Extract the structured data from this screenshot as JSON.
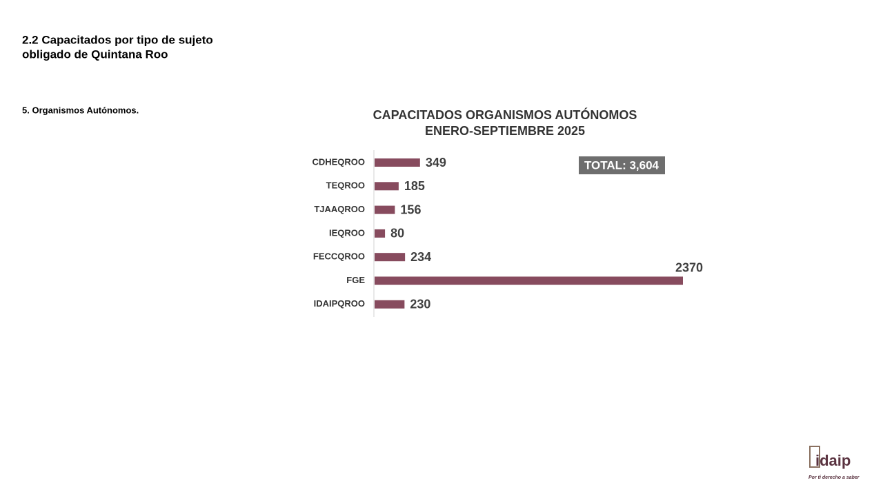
{
  "slide": {
    "heading": [
      "2.2 Capacitados por tipo de sujeto",
      "obligado de Quintana Roo"
    ],
    "section": "5. Organismos Autónomos."
  },
  "chart_data": {
    "type": "bar",
    "orientation": "horizontal",
    "title": "CAPACITADOS ORGANISMOS AUTÓNOMOS",
    "subtitle": "ENERO-SEPTIEMBRE 2025",
    "categories": [
      "CDHEQROO",
      "TEQROO",
      "TJAAQROO",
      "IEQROO",
      "FECCQROO",
      "FGE",
      "IDAIPQROO"
    ],
    "values": [
      349,
      185,
      156,
      80,
      234,
      2370,
      230
    ],
    "color": "#874b5e",
    "annotation": "TOTAL:  3,604"
  },
  "logo": {
    "name": "idaip",
    "tagline": "Por ti derecho a saber"
  }
}
